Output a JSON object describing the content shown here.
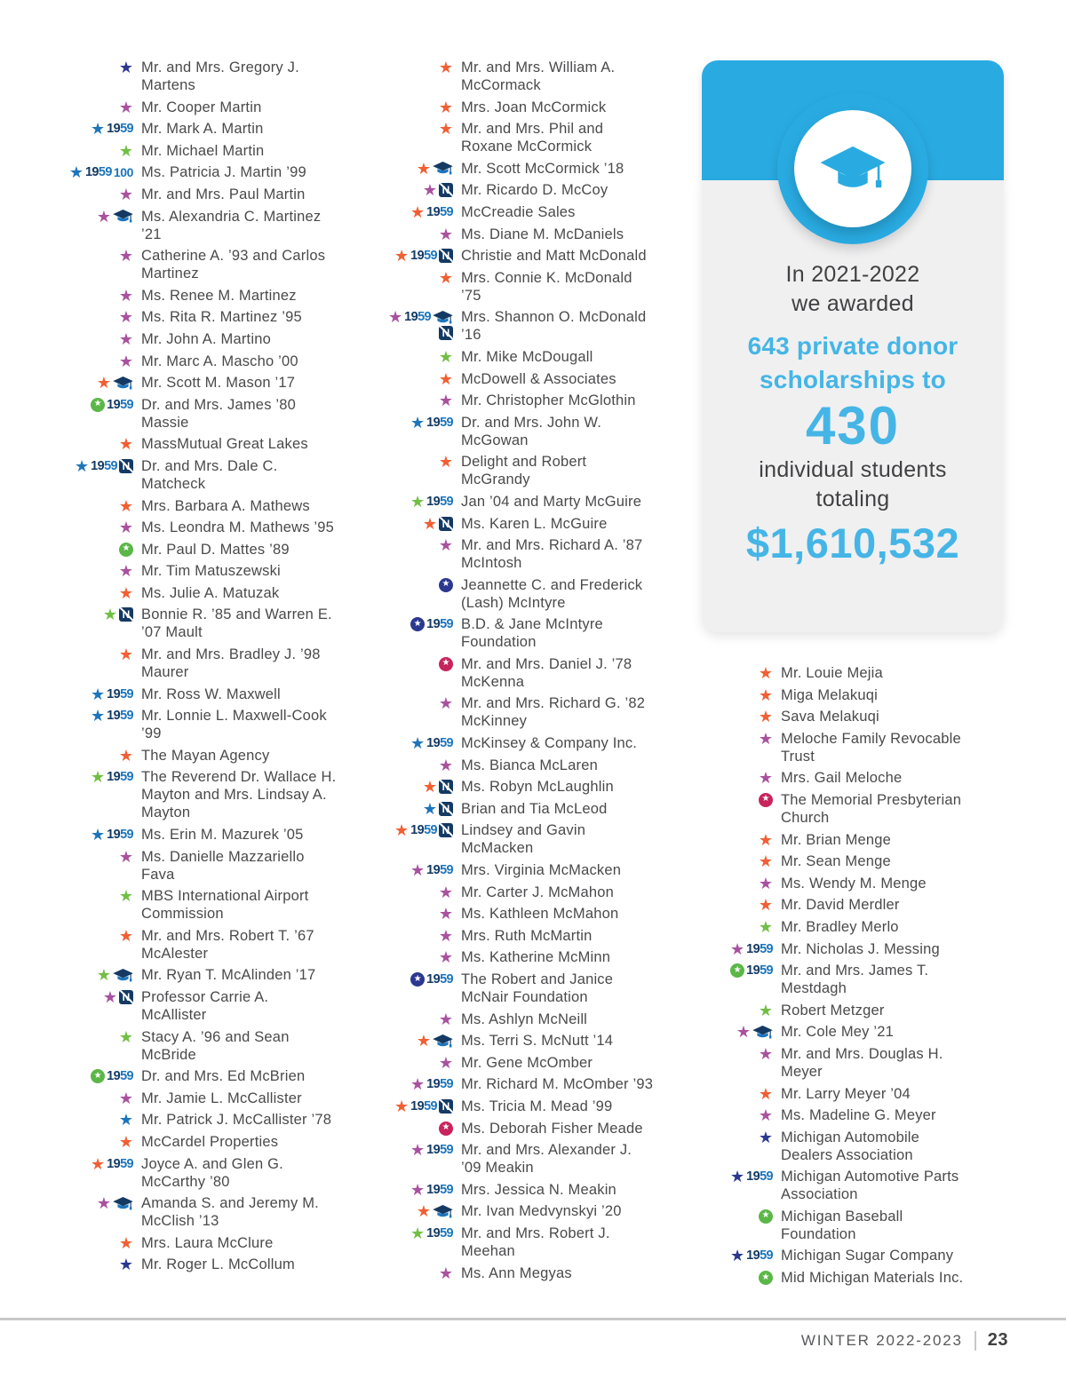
{
  "colors": {
    "accent_blue": "#29abe2",
    "stat_text_blue": "#45b5e6",
    "text_dark": "#4a4a4c",
    "stars": {
      "blue": "#1c75bc",
      "purple": "#a9519f",
      "orange": "#f15f33",
      "green": "#71bf44",
      "navy": "#2b3890"
    },
    "circles": {
      "green": "#5bb747",
      "navy": "#2b3890",
      "red": "#c8245c"
    },
    "badge_navy": "#143a63",
    "badge_blue": "#1c75bc"
  },
  "stats_card": {
    "icon": "graduation-cap-icon",
    "line1": "In 2021-2022",
    "line2": "we awarded",
    "highlight_line1": "643 private donor",
    "highlight_line2": "scholarships to",
    "big_number": "430",
    "line3": "individual students",
    "line4": "totaling",
    "total": "$1,610,532"
  },
  "footer": {
    "issue": "WINTER 2022-2023",
    "page_number": "23"
  },
  "columns": [
    {
      "entries": [
        {
          "icons": [
            "star-navy"
          ],
          "name": "Mr. and Mrs. Gregory J.\nMartens"
        },
        {
          "icons": [
            "star-purple"
          ],
          "name": "Mr. Cooper Martin"
        },
        {
          "icons": [
            "star-blue",
            "y1959"
          ],
          "name": "Mr. Mark A. Martin"
        },
        {
          "icons": [
            "star-green"
          ],
          "name": "Mr. Michael Martin"
        },
        {
          "icons": [
            "star-blue",
            "y1959",
            "y100"
          ],
          "name": "Ms. Patricia J. Martin ’99"
        },
        {
          "icons": [
            "star-purple"
          ],
          "name": "Mr. and Mrs. Paul Martin"
        },
        {
          "icons": [
            "star-purple",
            "gradcap"
          ],
          "name": "Ms. Alexandria C. Martinez\n’21"
        },
        {
          "icons": [
            "star-purple"
          ],
          "name": "Catherine A. ’93 and Carlos\nMartinez"
        },
        {
          "icons": [
            "star-purple"
          ],
          "name": "Ms. Renee M. Martinez"
        },
        {
          "icons": [
            "star-purple"
          ],
          "name": "Ms. Rita R. Martinez ’95"
        },
        {
          "icons": [
            "star-purple"
          ],
          "name": "Mr. John A. Martino"
        },
        {
          "icons": [
            "star-purple"
          ],
          "name": "Mr. Marc A. Mascho ’00"
        },
        {
          "icons": [
            "star-orange",
            "gradcap"
          ],
          "name": "Mr. Scott M. Mason ’17"
        },
        {
          "icons": [
            "circlestar-green",
            "y1959"
          ],
          "name": "Dr. and Mrs. James ’80\nMassie"
        },
        {
          "icons": [
            "star-orange"
          ],
          "name": "MassMutual Great Lakes"
        },
        {
          "icons": [
            "star-blue",
            "y1959",
            "nbadge"
          ],
          "name": "Dr. and Mrs. Dale C.\nMatcheck"
        },
        {
          "icons": [
            "star-orange"
          ],
          "name": "Mrs. Barbara A. Mathews"
        },
        {
          "icons": [
            "star-purple"
          ],
          "name": "Ms. Leondra M. Mathews ’95"
        },
        {
          "icons": [
            "circlestar-green"
          ],
          "name": "Mr. Paul D. Mattes ’89"
        },
        {
          "icons": [
            "star-purple"
          ],
          "name": "Mr. Tim Matuszewski"
        },
        {
          "icons": [
            "star-orange"
          ],
          "name": "Ms. Julie A. Matuzak"
        },
        {
          "icons": [
            "star-green",
            "nbadge"
          ],
          "name": "Bonnie R. ’85 and Warren E.\n’07 Mault"
        },
        {
          "icons": [
            "star-orange"
          ],
          "name": "Mr. and Mrs. Bradley J. ’98\nMaurer"
        },
        {
          "icons": [
            "star-blue",
            "y1959"
          ],
          "name": "Mr. Ross W. Maxwell"
        },
        {
          "icons": [
            "star-blue",
            "y1959"
          ],
          "name": "Mr. Lonnie L. Maxwell-Cook\n’99"
        },
        {
          "icons": [
            "star-orange"
          ],
          "name": "The Mayan Agency"
        },
        {
          "icons": [
            "star-green",
            "y1959"
          ],
          "name": "The Reverend Dr. Wallace H.\nMayton and Mrs. Lindsay A.\nMayton"
        },
        {
          "icons": [
            "star-blue",
            "y1959"
          ],
          "name": "Ms. Erin M. Mazurek ’05"
        },
        {
          "icons": [
            "star-purple"
          ],
          "name": "Ms. Danielle Mazzariello\nFava"
        },
        {
          "icons": [
            "star-green"
          ],
          "name": "MBS International Airport\nCommission"
        },
        {
          "icons": [
            "star-orange"
          ],
          "name": "Mr. and Mrs. Robert T. ’67\nMcAlester"
        },
        {
          "icons": [
            "star-green",
            "gradcap"
          ],
          "name": "Mr. Ryan T. McAlinden ’17"
        },
        {
          "icons": [
            "star-purple",
            "nbadge"
          ],
          "name": "Professor Carrie A.\nMcAllister"
        },
        {
          "icons": [
            "star-green"
          ],
          "name": "Stacy A. ’96 and Sean\nMcBride"
        },
        {
          "icons": [
            "circlestar-green",
            "y1959"
          ],
          "name": "Dr. and Mrs. Ed McBrien"
        },
        {
          "icons": [
            "star-purple"
          ],
          "name": "Mr. Jamie L. McCallister"
        },
        {
          "icons": [
            "star-blue"
          ],
          "name": "Mr. Patrick J. McCallister ’78"
        },
        {
          "icons": [
            "star-orange"
          ],
          "name": "McCardel Properties"
        },
        {
          "icons": [
            "star-orange",
            "y1959"
          ],
          "name": "Joyce A. and Glen G.\nMcCarthy ’80"
        },
        {
          "icons": [
            "star-purple",
            "gradcap"
          ],
          "name": "Amanda S. and Jeremy M.\nMcClish ’13"
        },
        {
          "icons": [
            "star-orange"
          ],
          "name": "Mrs. Laura McClure"
        },
        {
          "icons": [
            "star-navy"
          ],
          "name": "Mr. Roger L. McCollum"
        }
      ]
    },
    {
      "entries": [
        {
          "icons": [
            "star-orange"
          ],
          "name": "Mr. and Mrs. William A.\nMcCormack"
        },
        {
          "icons": [
            "star-orange"
          ],
          "name": "Mrs. Joan McCormick"
        },
        {
          "icons": [
            "star-orange"
          ],
          "name": "Mr. and Mrs. Phil and\nRoxane McCormick"
        },
        {
          "icons": [
            "star-orange",
            "gradcap"
          ],
          "name": "Mr. Scott McCormick ’18"
        },
        {
          "icons": [
            "star-purple",
            "nbadge"
          ],
          "name": "Mr. Ricardo D. McCoy"
        },
        {
          "icons": [
            "star-orange",
            "y1959"
          ],
          "name": "McCreadie Sales"
        },
        {
          "icons": [
            "star-purple"
          ],
          "name": "Ms. Diane M. McDaniels"
        },
        {
          "icons": [
            "star-orange",
            "y1959",
            "nbadge"
          ],
          "name": "Christie and Matt McDonald"
        },
        {
          "icons": [
            "star-orange"
          ],
          "name": "Mrs. Connie K. McDonald\n’75"
        },
        {
          "icons": [
            "star-purple",
            "y1959",
            "gradcap",
            "nbadge"
          ],
          "name": "Mrs. Shannon O. McDonald\n’16"
        },
        {
          "icons": [
            "star-green"
          ],
          "name": "Mr. Mike McDougall"
        },
        {
          "icons": [
            "star-orange"
          ],
          "name": "McDowell & Associates"
        },
        {
          "icons": [
            "star-purple"
          ],
          "name": "Mr. Christopher McGlothin"
        },
        {
          "icons": [
            "star-blue",
            "y1959"
          ],
          "name": "Dr. and Mrs. John W.\nMcGowan"
        },
        {
          "icons": [
            "star-orange"
          ],
          "name": "Delight and Robert\nMcGrandy"
        },
        {
          "icons": [
            "star-green",
            "y1959"
          ],
          "name": "Jan ’04 and Marty McGuire"
        },
        {
          "icons": [
            "star-orange",
            "nbadge"
          ],
          "name": "Ms. Karen L. McGuire"
        },
        {
          "icons": [
            "star-purple"
          ],
          "name": "Mr. and Mrs. Richard A. ’87\nMcIntosh"
        },
        {
          "icons": [
            "circlestar-navy"
          ],
          "name": "Jeannette C. and Frederick\n(Lash) McIntyre"
        },
        {
          "icons": [
            "circlestar-navy",
            "y1959"
          ],
          "name": "B.D. & Jane McIntyre\nFoundation"
        },
        {
          "icons": [
            "circlestar-red"
          ],
          "name": "Mr. and Mrs. Daniel J. ’78\nMcKenna"
        },
        {
          "icons": [
            "star-purple"
          ],
          "name": "Mr. and Mrs. Richard G. ’82\nMcKinney"
        },
        {
          "icons": [
            "star-blue",
            "y1959"
          ],
          "name": "McKinsey & Company Inc."
        },
        {
          "icons": [
            "star-purple"
          ],
          "name": "Ms. Bianca McLaren"
        },
        {
          "icons": [
            "star-orange",
            "nbadge"
          ],
          "name": "Ms. Robyn McLaughlin"
        },
        {
          "icons": [
            "star-blue",
            "nbadge"
          ],
          "name": "Brian and Tia McLeod"
        },
        {
          "icons": [
            "star-orange",
            "y1959",
            "nbadge"
          ],
          "name": "Lindsey and Gavin\nMcMacken"
        },
        {
          "icons": [
            "star-purple",
            "y1959"
          ],
          "name": "Mrs. Virginia McMacken"
        },
        {
          "icons": [
            "star-purple"
          ],
          "name": "Mr. Carter J. McMahon"
        },
        {
          "icons": [
            "star-purple"
          ],
          "name": "Ms. Kathleen McMahon"
        },
        {
          "icons": [
            "star-purple"
          ],
          "name": "Mrs. Ruth McMartin"
        },
        {
          "icons": [
            "star-purple"
          ],
          "name": "Ms. Katherine McMinn"
        },
        {
          "icons": [
            "circlestar-navy",
            "y1959"
          ],
          "name": "The Robert and Janice\nMcNair Foundation"
        },
        {
          "icons": [
            "star-purple"
          ],
          "name": "Ms. Ashlyn McNeill"
        },
        {
          "icons": [
            "star-orange",
            "gradcap"
          ],
          "name": "Ms. Terri S. McNutt ’14"
        },
        {
          "icons": [
            "star-purple"
          ],
          "name": "Mr. Gene McOmber"
        },
        {
          "icons": [
            "star-purple",
            "y1959"
          ],
          "name": "Mr. Richard M. McOmber ’93"
        },
        {
          "icons": [
            "star-orange",
            "y1959",
            "nbadge"
          ],
          "name": "Ms. Tricia M. Mead ’99"
        },
        {
          "icons": [
            "circlestar-red"
          ],
          "name": "Ms. Deborah Fisher Meade"
        },
        {
          "icons": [
            "star-purple",
            "y1959"
          ],
          "name": "Mr. and Mrs. Alexander J.\n’09 Meakin"
        },
        {
          "icons": [
            "star-purple",
            "y1959"
          ],
          "name": "Mrs. Jessica N. Meakin"
        },
        {
          "icons": [
            "star-orange",
            "gradcap"
          ],
          "name": "Mr. Ivan Medvynskyi ’20"
        },
        {
          "icons": [
            "star-green",
            "y1959"
          ],
          "name": "Mr. and Mrs. Robert J.\nMeehan"
        },
        {
          "icons": [
            "star-purple"
          ],
          "name": "Ms. Ann Megyas"
        }
      ]
    },
    {
      "entries": [
        {
          "icons": [
            "star-orange"
          ],
          "name": "Mr. Louie Mejia"
        },
        {
          "icons": [
            "star-orange"
          ],
          "name": "Miga Melakuqi"
        },
        {
          "icons": [
            "star-orange"
          ],
          "name": "Sava Melakuqi"
        },
        {
          "icons": [
            "star-purple"
          ],
          "name": "Meloche Family Revocable\nTrust"
        },
        {
          "icons": [
            "star-purple"
          ],
          "name": "Mrs. Gail Meloche"
        },
        {
          "icons": [
            "circlestar-red"
          ],
          "name": "The Memorial Presbyterian\nChurch"
        },
        {
          "icons": [
            "star-orange"
          ],
          "name": "Mr. Brian Menge"
        },
        {
          "icons": [
            "star-orange"
          ],
          "name": "Mr. Sean Menge"
        },
        {
          "icons": [
            "star-purple"
          ],
          "name": "Ms. Wendy M. Menge"
        },
        {
          "icons": [
            "star-orange"
          ],
          "name": "Mr. David Merdler"
        },
        {
          "icons": [
            "star-green"
          ],
          "name": "Mr. Bradley Merlo"
        },
        {
          "icons": [
            "star-purple",
            "y1959"
          ],
          "name": "Mr. Nicholas J. Messing"
        },
        {
          "icons": [
            "circlestar-green",
            "y1959"
          ],
          "name": "Mr. and Mrs. James T.\nMestdagh"
        },
        {
          "icons": [
            "star-green"
          ],
          "name": "Robert Metzger"
        },
        {
          "icons": [
            "star-purple",
            "gradcap"
          ],
          "name": "Mr. Cole Mey ’21"
        },
        {
          "icons": [
            "star-purple"
          ],
          "name": "Mr. and Mrs. Douglas H.\nMeyer"
        },
        {
          "icons": [
            "star-orange"
          ],
          "name": "Mr. Larry Meyer ’04"
        },
        {
          "icons": [
            "star-purple"
          ],
          "name": "Ms. Madeline G. Meyer"
        },
        {
          "icons": [
            "star-navy"
          ],
          "name": "Michigan Automobile\nDealers Association"
        },
        {
          "icons": [
            "star-navy",
            "y1959"
          ],
          "name": "Michigan Automotive Parts\nAssociation"
        },
        {
          "icons": [
            "circlestar-green"
          ],
          "name": "Michigan Baseball\nFoundation"
        },
        {
          "icons": [
            "star-navy",
            "y1959"
          ],
          "name": "Michigan Sugar Company"
        },
        {
          "icons": [
            "circlestar-green"
          ],
          "name": "Mid Michigan Materials Inc."
        }
      ]
    }
  ]
}
